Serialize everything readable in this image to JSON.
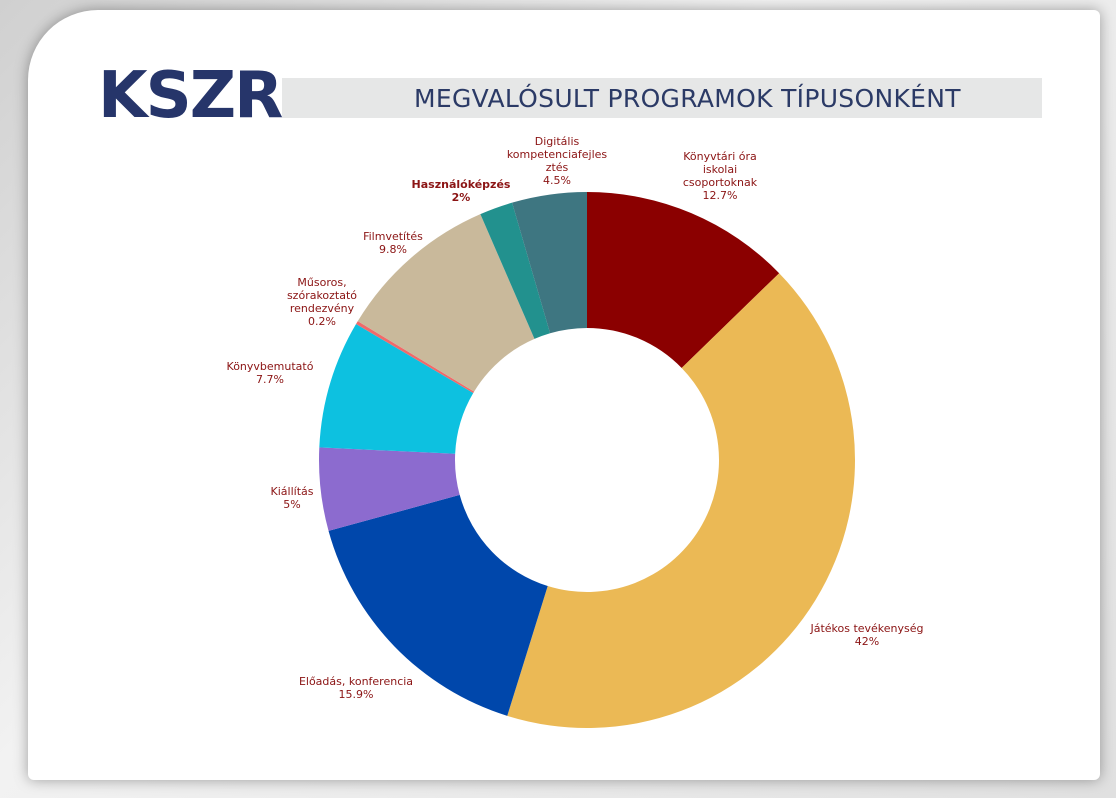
{
  "chart_data": {
    "type": "donut",
    "logo": "KSZR",
    "title": "MEGVALÓSULT PROGRAMOK TÍPUSONKÉNT",
    "categories": [
      "Könyvtári óra iskolai csoportoknak",
      "Játékos tevékenység",
      "Előadás, konferencia",
      "Kiállítás",
      "Könyvbemutató",
      "Műsoros, szórakoztató rendezvény",
      "Filmvetítés",
      "Használóképzés",
      "Digitális kompetenciafejlesztés"
    ],
    "values": [
      12.7,
      42,
      15.9,
      5,
      7.7,
      0.2,
      9.8,
      2,
      4.5
    ],
    "value_labels": [
      "12.7%",
      "42%",
      "15.9%",
      "5%",
      "7.7%",
      "0.2%",
      "9.8%",
      "2%",
      "4.5%"
    ],
    "colors": [
      "#8b0000",
      "#ebb955",
      "#0047ab",
      "#8c6bcf",
      "#0dc1e0",
      "#f06a6a",
      "#c9b99b",
      "#22918e",
      "#3e7681"
    ]
  }
}
